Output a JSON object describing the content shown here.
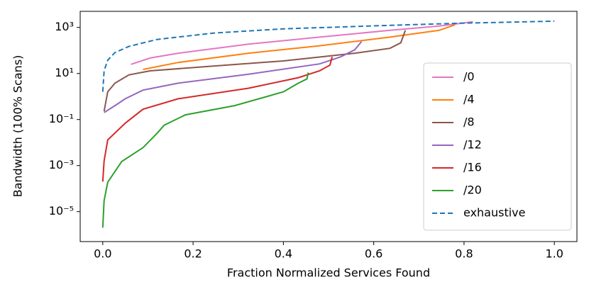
{
  "chart_data": {
    "type": "line",
    "y_scale": "log",
    "grid": false,
    "legend_loc": "lower right",
    "x_label": "Fraction Normalized Services Found",
    "y_label": "Bandwidth (100% Scans)",
    "xlim": [
      -0.05,
      1.05
    ],
    "ylim": [
      5e-07,
      5000
    ],
    "xticks": [
      {
        "value": 0,
        "label": "0.0"
      },
      0.2,
      0.4,
      0.6,
      0.8,
      {
        "value": 1,
        "label": "1.0"
      }
    ],
    "yticks": [
      {
        "value": 1e-05,
        "label": "10⁻⁵"
      },
      {
        "value": 0.001,
        "label": "10⁻³"
      },
      {
        "value": 0.1,
        "label": "10⁻¹"
      },
      {
        "value": 10,
        "label": "10¹"
      },
      {
        "value": 1000,
        "label": "10³"
      }
    ],
    "series": [
      {
        "name": "/0",
        "color": "#e377c2",
        "linestyle": "solid",
        "x": [
          0.0625,
          0.105,
          0.167,
          0.323,
          0.48,
          0.636,
          0.745,
          0.82
        ],
        "values": [
          25,
          47,
          76,
          190,
          380,
          750,
          1150,
          1750
        ]
      },
      {
        "name": "/4",
        "color": "#ff7f0e",
        "linestyle": "solid",
        "x": [
          0.089,
          0.167,
          0.323,
          0.48,
          0.636,
          0.745,
          0.78
        ],
        "values": [
          15,
          30,
          76,
          160,
          380,
          750,
          1300
        ]
      },
      {
        "name": "/8",
        "color": "#8c564b",
        "linestyle": "solid",
        "x": [
          0.003,
          0.011,
          0.027,
          0.058,
          0.105,
          0.245,
          0.4,
          0.558,
          0.636,
          0.66,
          0.67
        ],
        "values": [
          0.23,
          1.6,
          3.8,
          8.7,
          13,
          21,
          35,
          76,
          124,
          215,
          750
        ]
      },
      {
        "name": "/12",
        "color": "#9467bd",
        "linestyle": "solid",
        "x": [
          0.003,
          0.027,
          0.05,
          0.089,
          0.167,
          0.323,
          0.48,
          0.527,
          0.558,
          0.573
        ],
        "values": [
          0.2,
          0.4,
          0.8,
          1.9,
          3.8,
          9.3,
          26,
          53,
          107,
          245
        ]
      },
      {
        "name": "/16",
        "color": "#d62728",
        "linestyle": "solid",
        "x": [
          0,
          0.003,
          0.011,
          0.05,
          0.089,
          0.167,
          0.323,
          0.433,
          0.48,
          0.503,
          0.508
        ],
        "values": [
          0.0002,
          0.0016,
          0.013,
          0.07,
          0.28,
          0.8,
          2.3,
          6.6,
          13,
          23,
          53
        ]
      },
      {
        "name": "/20",
        "color": "#2ca02c",
        "linestyle": "solid",
        "x": [
          0,
          0.003,
          0.011,
          0.042,
          0.089,
          0.12,
          0.136,
          0.183,
          0.292,
          0.4,
          0.433,
          0.452,
          0.455
        ],
        "values": [
          2e-06,
          3e-05,
          0.00019,
          0.0015,
          0.006,
          0.025,
          0.057,
          0.16,
          0.4,
          1.6,
          3.8,
          5.8,
          11
        ]
      },
      {
        "name": "exhaustive",
        "color": "#1f77b4",
        "linestyle": "dashed",
        "x": [
          0,
          0.003,
          0.011,
          0.027,
          0.058,
          0.12,
          0.245,
          0.4,
          0.636,
          0.79,
          1
        ],
        "values": [
          1.6,
          13,
          38,
          81,
          150,
          300,
          570,
          870,
          1230,
          1520,
          1870
        ]
      }
    ]
  }
}
